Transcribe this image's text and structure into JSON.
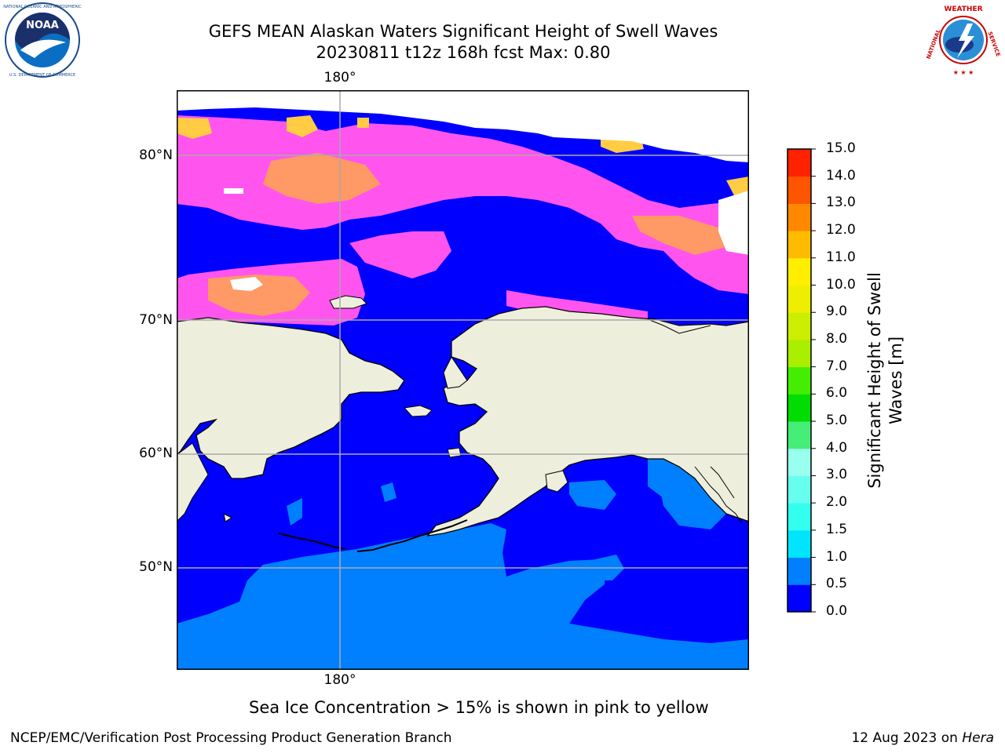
{
  "title": {
    "line1": "GEFS MEAN Alaskan Waters Significant Height of Swell Waves",
    "line2": "20230811 t12z 168h fcst   Max: 0.80"
  },
  "logos": {
    "left": "noaa-logo",
    "left_text": "NOAA",
    "left_ring_text": "NATIONAL OCEANIC AND ATMOSPHERIC ADMINISTRATION · U.S. DEPARTMENT OF COMMERCE",
    "right": "national-weather-service-logo",
    "right_ring_text": "NATIONAL WEATHER SERVICE"
  },
  "map": {
    "lon_labels": [
      "180°",
      "180°"
    ],
    "lat_labels": [
      "80°N",
      "70°N",
      "60°N",
      "50°N"
    ],
    "colors": {
      "land": "#EEEEDD",
      "ocean_low": "#0000FF",
      "ocean_mid": "#0080FF",
      "ice_pink": "#FF44EE",
      "ice_orange": "#FF9966",
      "ice_yellow": "#FFCC44",
      "gridline": "#AAAAAA"
    }
  },
  "colorbar": {
    "label": "Significant Height of Swell Waves [m]",
    "label_line1": "Significant Height of Swell",
    "label_line2": "Waves [m]",
    "ticks": [
      "0.0",
      "0.5",
      "1.0",
      "1.5",
      "2.0",
      "3.0",
      "4.0",
      "5.0",
      "6.0",
      "7.0",
      "8.0",
      "9.0",
      "10.0",
      "11.0",
      "12.0",
      "13.0",
      "14.0",
      "15.0"
    ],
    "colors": [
      "#0000FF",
      "#0080FF",
      "#00E5FF",
      "#33FFEE",
      "#66FFEE",
      "#99FFEE",
      "#44EE77",
      "#00DD00",
      "#44EE00",
      "#AAEE00",
      "#CCEE00",
      "#EEEE00",
      "#FFEE00",
      "#FFBB00",
      "#FF8800",
      "#FF5500",
      "#FF2200",
      "#FF0000"
    ]
  },
  "caption": "Sea Ice Concentration > 15% is shown in pink to yellow",
  "footer": {
    "left": "NCEP/EMC/Verification Post Processing Product Generation Branch",
    "right_date": "12 Aug 2023 on ",
    "right_machine": "Hera"
  }
}
